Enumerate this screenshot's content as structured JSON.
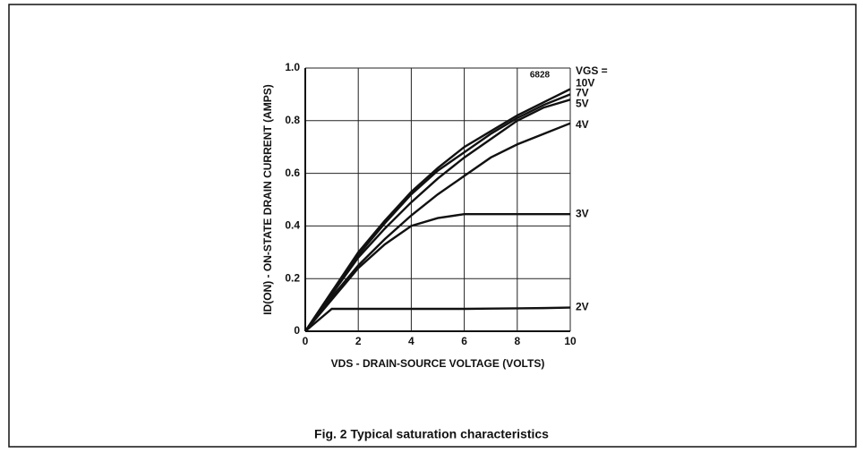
{
  "chart_data": {
    "type": "line",
    "caption": "Fig. 2 Typical saturation characteristics",
    "code": "6828",
    "legend_title": "VGS =",
    "xlabel": "VDS - DRAIN-SOURCE VOLTAGE (VOLTS)",
    "ylabel": "ID(ON) - ON-STATE DRAIN CURRENT (AMPS)",
    "x": [
      0,
      1,
      2,
      3,
      4,
      5,
      6,
      7,
      8,
      9,
      10
    ],
    "series": [
      {
        "name": "10V",
        "color": "#111111",
        "values": [
          0,
          0.15,
          0.3,
          0.42,
          0.53,
          0.62,
          0.7,
          0.76,
          0.82,
          0.87,
          0.92
        ]
      },
      {
        "name": "7V",
        "color": "#111111",
        "values": [
          0,
          0.15,
          0.29,
          0.41,
          0.52,
          0.61,
          0.68,
          0.75,
          0.81,
          0.86,
          0.9
        ]
      },
      {
        "name": "5V",
        "color": "#111111",
        "values": [
          0,
          0.14,
          0.28,
          0.39,
          0.49,
          0.58,
          0.66,
          0.73,
          0.8,
          0.85,
          0.88
        ]
      },
      {
        "name": "4V",
        "color": "#111111",
        "values": [
          0,
          0.13,
          0.25,
          0.35,
          0.44,
          0.52,
          0.59,
          0.66,
          0.71,
          0.75,
          0.79
        ]
      },
      {
        "name": "3V",
        "color": "#111111",
        "values": [
          0,
          0.12,
          0.24,
          0.33,
          0.4,
          0.43,
          0.445,
          0.445,
          0.445,
          0.445,
          0.445
        ]
      },
      {
        "name": "2V",
        "color": "#111111",
        "values": [
          0,
          0.085,
          0.085,
          0.085,
          0.085,
          0.085,
          0.085,
          0.086,
          0.087,
          0.088,
          0.09
        ]
      }
    ],
    "xlim": [
      0,
      10
    ],
    "xticks": [
      0,
      2,
      4,
      6,
      8,
      10
    ],
    "ylim": [
      0,
      1
    ],
    "yticks": [
      0,
      0.2,
      0.4,
      0.6,
      0.8,
      {
        "value": 1,
        "label": "1.0"
      }
    ],
    "grid": true
  }
}
